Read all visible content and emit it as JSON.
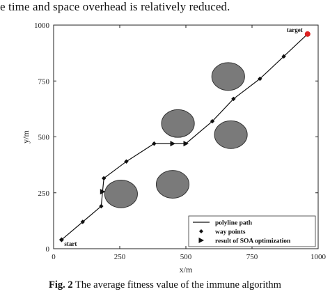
{
  "text_above": "e time and space overhead is relatively reduced.",
  "caption": {
    "label": "Fig. 2",
    "text": " The average fitness value of the immune algorithm"
  },
  "chart_data": {
    "type": "line",
    "xlabel": "x/m",
    "ylabel": "y/m",
    "xlim": [
      0,
      1000
    ],
    "ylim": [
      0,
      1000
    ],
    "xticks": [
      "0",
      "250",
      "500",
      "750",
      "1000"
    ],
    "yticks": [
      "0",
      "250",
      "500",
      "750",
      "1000"
    ],
    "grid": false,
    "legend_position": "bottom-right",
    "series": [
      {
        "name": "polyline  path",
        "x": [
          30,
          110,
          180,
          185,
          190,
          275,
          380,
          450,
          500,
          600,
          680,
          780,
          870,
          960
        ],
        "y": [
          40,
          120,
          190,
          255,
          315,
          390,
          470,
          470,
          470,
          570,
          670,
          760,
          860,
          960
        ]
      },
      {
        "name": "way points",
        "x": [
          110,
          180,
          190,
          275,
          380,
          600,
          680,
          780,
          870
        ],
        "y": [
          120,
          190,
          315,
          390,
          470,
          570,
          670,
          760,
          860
        ]
      },
      {
        "name": "result of SOA optimization",
        "x": [
          185,
          450,
          500
        ],
        "y": [
          255,
          470,
          470
        ]
      }
    ],
    "obstacles": [
      {
        "x": 255,
        "y": 245,
        "r": 62
      },
      {
        "x": 450,
        "y": 288,
        "r": 62
      },
      {
        "x": 470,
        "y": 560,
        "r": 62
      },
      {
        "x": 670,
        "y": 510,
        "r": 62
      },
      {
        "x": 660,
        "y": 770,
        "r": 62
      }
    ],
    "annotations": {
      "start": {
        "label": "start",
        "x": 30,
        "y": 40
      },
      "target": {
        "label": "target",
        "x": 960,
        "y": 960
      }
    },
    "colors": {
      "target_marker": "#dd2222",
      "obstacle_fill": "#7a7a7a",
      "line": "#111111"
    }
  }
}
